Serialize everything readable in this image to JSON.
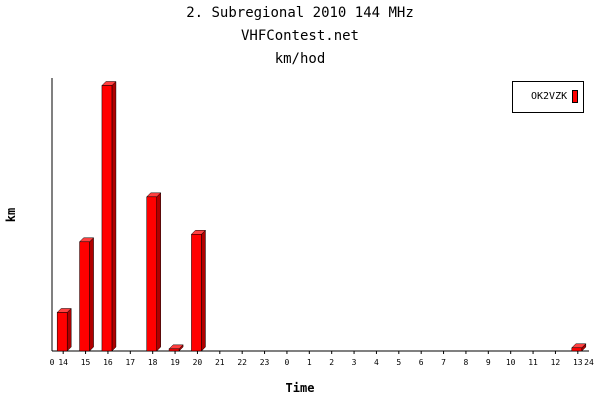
{
  "header": {
    "title": "2. Subregional 2010 144 MHz",
    "subtitle": "VHFContest.net",
    "unit_title": "km/hod"
  },
  "chart_data": {
    "type": "bar",
    "title": "2. Subregional 2010 144 MHz",
    "xlabel": "Time",
    "ylabel": "km",
    "x_start_label": "0",
    "x_end_label": "24",
    "categories": [
      "14",
      "15",
      "16",
      "17",
      "18",
      "19",
      "20",
      "21",
      "22",
      "23",
      "0",
      "1",
      "2",
      "3",
      "4",
      "5",
      "6",
      "7",
      "8",
      "9",
      "10",
      "11",
      "12",
      "13"
    ],
    "series": [
      {
        "name": "OK2VZK",
        "color": "#ff0000",
        "values": [
          36,
          102,
          248,
          0,
          144,
          2,
          109,
          0,
          0,
          0,
          0,
          0,
          0,
          0,
          0,
          0,
          0,
          0,
          0,
          0,
          0,
          0,
          0,
          3
        ]
      }
    ],
    "ylim": [
      0,
      255
    ],
    "grid": false,
    "legend": "top-right"
  }
}
